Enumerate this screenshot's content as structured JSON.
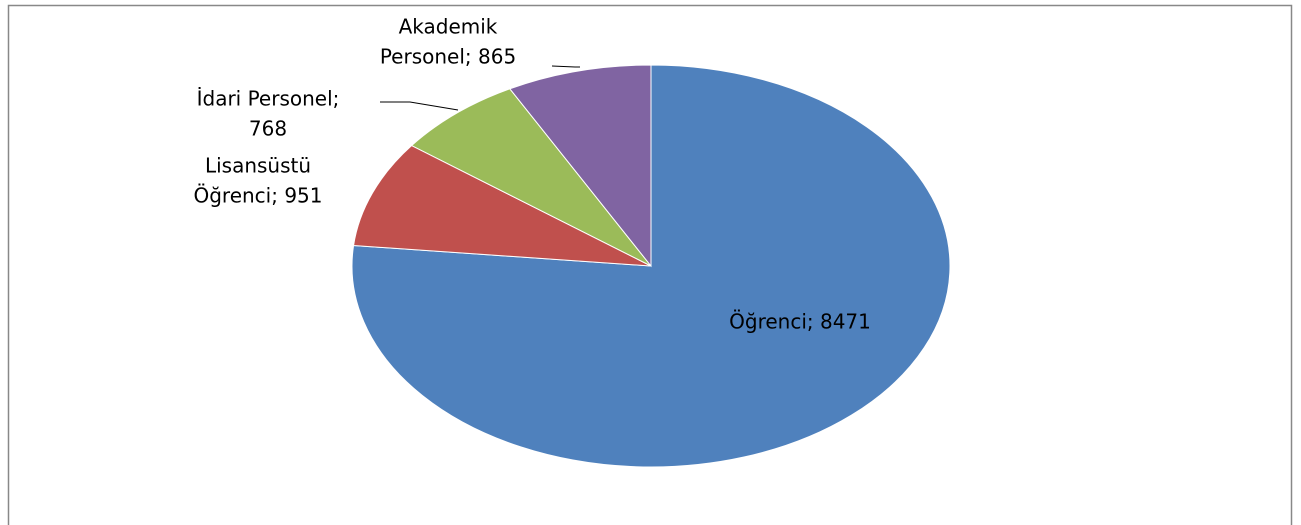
{
  "chart_data": {
    "type": "pie",
    "values": [
      8471,
      951,
      768,
      865
    ],
    "value_labels": [
      [
        "Öğrenci; 8471"
      ],
      [
        "Lisansüstü",
        "Öğrenci; 951"
      ],
      [
        "İdari Personel;",
        "768"
      ],
      [
        "Akademik",
        "Personel; 865"
      ]
    ],
    "colors": [
      "#4f81bd",
      "#c0504d",
      "#9bbb59",
      "#8064a2"
    ]
  }
}
